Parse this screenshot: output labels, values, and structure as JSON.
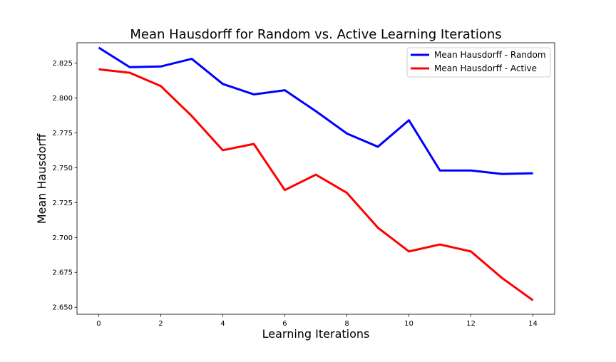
{
  "chart_data": {
    "type": "line",
    "title": "Mean Hausdorff for Random vs. Active Learning Iterations",
    "xlabel": "Learning Iterations",
    "ylabel": "Mean Hausdorff",
    "xlim": [
      -0.7,
      14.7
    ],
    "ylim": [
      2.645,
      2.8395
    ],
    "xticks": [
      0,
      2,
      4,
      6,
      8,
      10,
      12,
      14
    ],
    "xtick_labels": [
      "0",
      "2",
      "4",
      "6",
      "8",
      "10",
      "12",
      "14"
    ],
    "yticks": [
      2.65,
      2.675,
      2.7,
      2.725,
      2.75,
      2.775,
      2.8,
      2.825
    ],
    "ytick_labels": [
      "2.650",
      "2.675",
      "2.700",
      "2.725",
      "2.750",
      "2.775",
      "2.800",
      "2.825"
    ],
    "grid": false,
    "legend_position": "top-right",
    "x": [
      0,
      1,
      2,
      3,
      4,
      5,
      6,
      7,
      8,
      9,
      10,
      11,
      12,
      13,
      14
    ],
    "series": [
      {
        "name": "Mean Hausdorff - Random",
        "color": "#0000ff",
        "values": [
          2.836,
          2.822,
          2.8225,
          2.828,
          2.81,
          2.8025,
          2.8055,
          2.7905,
          2.7745,
          2.765,
          2.784,
          2.748,
          2.748,
          2.7455,
          2.746
        ]
      },
      {
        "name": "Mean Hausdorff - Active",
        "color": "#ff0000",
        "values": [
          2.8205,
          2.818,
          2.8085,
          2.787,
          2.7625,
          2.767,
          2.734,
          2.745,
          2.732,
          2.707,
          2.69,
          2.695,
          2.69,
          2.671,
          2.655
        ]
      }
    ]
  }
}
